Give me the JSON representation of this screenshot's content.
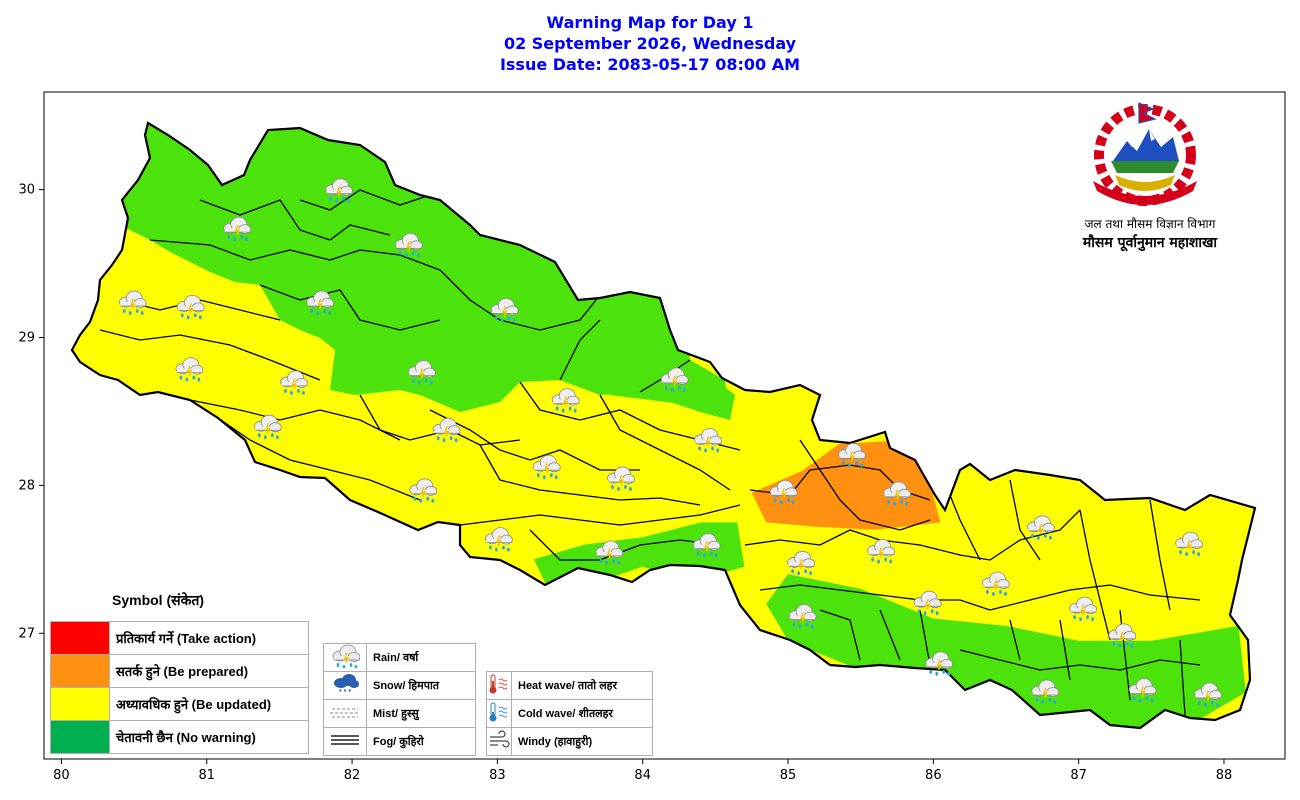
{
  "title": {
    "line1": "Warning Map for Day 1",
    "line2": "02 September 2026, Wednesday",
    "line3": "Issue Date: 2083-05-17 08:00 AM"
  },
  "axes": {
    "x_ticks": [
      "80",
      "81",
      "82",
      "83",
      "84",
      "85",
      "86",
      "87",
      "88"
    ],
    "y_ticks": [
      "27",
      "28",
      "29",
      "30"
    ],
    "x_range": [
      79.88,
      88.42
    ],
    "y_range": [
      26.15,
      30.66
    ]
  },
  "logo": {
    "line1": "जल तथा मौसम विज्ञान विभाग",
    "line2": "मौसम पूर्वानुमान महाशाखा"
  },
  "colors": {
    "red": "#ff0000",
    "orange": "#ff9010",
    "yellow": "#ffff00",
    "green": "#4ce30c",
    "legend_green": "#00b050"
  },
  "legend": {
    "title": "Symbol (संकेत)",
    "levels": [
      {
        "label": "प्रतिकार्य गर्ने (Take action)",
        "color": "#ff0000"
      },
      {
        "label": "सतर्क हुने (Be prepared)",
        "color": "#ff9010"
      },
      {
        "label": "अध्यावधिक हुने (Be updated)",
        "color": "#ffff00"
      },
      {
        "label": "चेतावनी छैन (No warning)",
        "color": "#00b050"
      }
    ],
    "symbols": [
      {
        "label": "Rain/ वर्षा",
        "icon": "rain-icon"
      },
      {
        "label": "Snow/ हिमपात",
        "icon": "snow-icon"
      },
      {
        "label": "Mist/ हुस्सु",
        "icon": "mist-icon"
      },
      {
        "label": "Fog/ कुहिरो",
        "icon": "fog-icon"
      }
    ],
    "hazards": [
      {
        "label": "Heat wave/ तातो लहर",
        "icon": "heat-wave-icon"
      },
      {
        "label": "Cold wave/ शीतलहर",
        "icon": "cold-wave-icon"
      },
      {
        "label": "Windy (हावाहुरी)",
        "icon": "windy-icon"
      }
    ]
  },
  "map_data": {
    "warning_areas": {
      "orange": [
        [
          84.75,
          27.95
        ],
        [
          85.1,
          28.1
        ],
        [
          85.35,
          28.28
        ],
        [
          85.7,
          28.3
        ],
        [
          85.95,
          28.1
        ],
        [
          86.05,
          27.75
        ],
        [
          85.6,
          27.7
        ],
        [
          85.2,
          27.72
        ],
        [
          84.85,
          27.75
        ]
      ],
      "green_east": [
        [
          85.0,
          27.4
        ],
        [
          85.5,
          27.3
        ],
        [
          86.0,
          27.1
        ],
        [
          86.5,
          27.05
        ],
        [
          87.0,
          26.95
        ],
        [
          87.5,
          26.95
        ],
        [
          88.1,
          27.05
        ],
        [
          88.15,
          26.6
        ],
        [
          87.8,
          26.4
        ],
        [
          87.2,
          26.35
        ],
        [
          86.6,
          26.4
        ],
        [
          86.0,
          26.55
        ],
        [
          85.5,
          26.75
        ],
        [
          85.0,
          26.95
        ],
        [
          84.85,
          27.2
        ]
      ],
      "green_mid": [
        [
          83.25,
          27.5
        ],
        [
          83.6,
          27.6
        ],
        [
          84.0,
          27.65
        ],
        [
          84.4,
          27.75
        ],
        [
          84.65,
          27.75
        ],
        [
          84.7,
          27.45
        ],
        [
          84.35,
          27.35
        ],
        [
          84.0,
          27.45
        ],
        [
          83.7,
          27.35
        ],
        [
          83.35,
          27.3
        ]
      ]
    },
    "rain_markers": [
      {
        "lon": 81.2,
        "lat": 29.74
      },
      {
        "lon": 81.9,
        "lat": 30.0
      },
      {
        "lon": 82.38,
        "lat": 29.63
      },
      {
        "lon": 80.48,
        "lat": 29.24
      },
      {
        "lon": 80.88,
        "lat": 29.21
      },
      {
        "lon": 81.77,
        "lat": 29.24
      },
      {
        "lon": 83.04,
        "lat": 29.19
      },
      {
        "lon": 80.87,
        "lat": 28.79
      },
      {
        "lon": 81.59,
        "lat": 28.7
      },
      {
        "lon": 82.47,
        "lat": 28.77
      },
      {
        "lon": 84.21,
        "lat": 28.72
      },
      {
        "lon": 81.41,
        "lat": 28.4
      },
      {
        "lon": 82.64,
        "lat": 28.38
      },
      {
        "lon": 83.46,
        "lat": 28.58
      },
      {
        "lon": 84.44,
        "lat": 28.31
      },
      {
        "lon": 85.43,
        "lat": 28.21
      },
      {
        "lon": 83.33,
        "lat": 28.13
      },
      {
        "lon": 83.84,
        "lat": 28.05
      },
      {
        "lon": 82.48,
        "lat": 27.97
      },
      {
        "lon": 84.96,
        "lat": 27.96
      },
      {
        "lon": 85.74,
        "lat": 27.95
      },
      {
        "lon": 83.0,
        "lat": 27.64
      },
      {
        "lon": 83.76,
        "lat": 27.55
      },
      {
        "lon": 84.43,
        "lat": 27.6
      },
      {
        "lon": 85.08,
        "lat": 27.48
      },
      {
        "lon": 85.63,
        "lat": 27.56
      },
      {
        "lon": 86.73,
        "lat": 27.72
      },
      {
        "lon": 87.75,
        "lat": 27.61
      },
      {
        "lon": 86.42,
        "lat": 27.34
      },
      {
        "lon": 87.02,
        "lat": 27.17
      },
      {
        "lon": 85.09,
        "lat": 27.12
      },
      {
        "lon": 85.95,
        "lat": 27.21
      },
      {
        "lon": 87.29,
        "lat": 26.99
      },
      {
        "lon": 86.03,
        "lat": 26.8
      },
      {
        "lon": 86.76,
        "lat": 26.61
      },
      {
        "lon": 87.43,
        "lat": 26.62
      },
      {
        "lon": 87.88,
        "lat": 26.59
      }
    ]
  }
}
